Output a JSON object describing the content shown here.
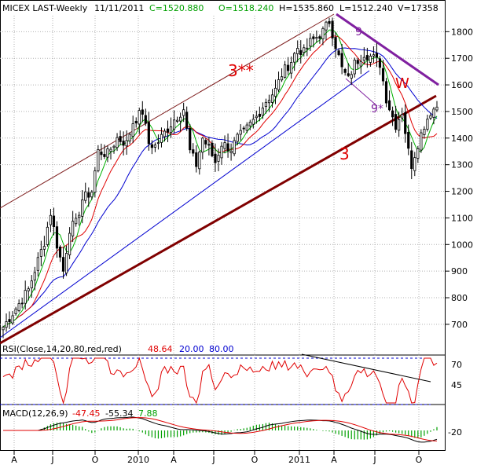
{
  "header": {
    "symbol": "MICEX LAST-Weekly",
    "date": "11/11/2011",
    "close": "C=1520.880",
    "open": "O=1518.240",
    "high": "H=1535.860",
    "low": "L=1512.240",
    "volume": "V=17358"
  },
  "rsi_header": {
    "label": "RSI(Close,14,20,80,red,red)",
    "value": "48.64",
    "low": "20.00",
    "high": "80.00"
  },
  "macd_header": {
    "label": "MACD(12,26,9)",
    "macd": "-47.45",
    "signal": "-55.34",
    "hist": "7.88"
  },
  "annotations": {
    "channel_top": "3**",
    "channel_bottom": "3",
    "wave9": "9",
    "wave9star": "9*",
    "w": "W"
  },
  "colors": {
    "up": "#000000",
    "ma_green": "#00b000",
    "ma_red": "#e00000",
    "ma_blue": "#0000d0",
    "trend_red": "#800000",
    "trend_purple": "#8020a0",
    "channel": "#802020",
    "rsi": "#e00000",
    "grid": "#b0b0b0"
  },
  "chart_data": [
    {
      "type": "candlestick",
      "title": "MICEX LAST-Weekly",
      "x_tick_labels": [
        "A",
        "J",
        "O",
        "2010",
        "A",
        "J",
        "O",
        "2011",
        "A",
        "J",
        "O"
      ],
      "y_tick_labels": [
        "700",
        "800",
        "900",
        "1000",
        "1100",
        "1200",
        "1300",
        "1400",
        "1500",
        "1600",
        "1700",
        "1800"
      ],
      "ylim": [
        620,
        1860
      ],
      "x_range": [
        "2009-03",
        "2011-11"
      ],
      "close_path": [
        [
          0,
          690
        ],
        [
          4,
          760
        ],
        [
          8,
          830
        ],
        [
          11,
          940
        ],
        [
          13,
          1010
        ],
        [
          15,
          1120
        ],
        [
          17,
          1000
        ],
        [
          19,
          900
        ],
        [
          21,
          1060
        ],
        [
          23,
          1080
        ],
        [
          25,
          1170
        ],
        [
          28,
          1200
        ],
        [
          30,
          1350
        ],
        [
          33,
          1340
        ],
        [
          36,
          1400
        ],
        [
          39,
          1380
        ],
        [
          41,
          1460
        ],
        [
          44,
          1500
        ],
        [
          46,
          1380
        ],
        [
          48,
          1370
        ],
        [
          51,
          1420
        ],
        [
          54,
          1470
        ],
        [
          57,
          1510
        ],
        [
          59,
          1350
        ],
        [
          61,
          1300
        ],
        [
          63,
          1400
        ],
        [
          65,
          1360
        ],
        [
          67,
          1310
        ],
        [
          69,
          1380
        ],
        [
          72,
          1360
        ],
        [
          74,
          1400
        ],
        [
          76,
          1420
        ],
        [
          78,
          1450
        ],
        [
          80,
          1480
        ],
        [
          83,
          1540
        ],
        [
          86,
          1580
        ],
        [
          88,
          1640
        ],
        [
          91,
          1690
        ],
        [
          93,
          1740
        ],
        [
          95,
          1720
        ],
        [
          97,
          1760
        ],
        [
          99,
          1780
        ],
        [
          101,
          1800
        ],
        [
          103,
          1840
        ],
        [
          105,
          1750
        ],
        [
          107,
          1660
        ],
        [
          109,
          1620
        ],
        [
          111,
          1680
        ],
        [
          114,
          1720
        ],
        [
          117,
          1700
        ],
        [
          119,
          1680
        ],
        [
          121,
          1550
        ],
        [
          123,
          1480
        ],
        [
          124,
          1450
        ],
        [
          126,
          1500
        ],
        [
          128,
          1350
        ],
        [
          129,
          1300
        ],
        [
          131,
          1380
        ],
        [
          133,
          1450
        ],
        [
          135,
          1500
        ],
        [
          137,
          1520
        ]
      ],
      "moving_averages": [
        "green",
        "red",
        "blue"
      ],
      "annotations": [
        "3**",
        "3",
        "9",
        "9*",
        "W"
      ]
    },
    {
      "type": "line",
      "title": "RSI(Close,14,20,80,red,red)",
      "y_tick_labels": [
        "70",
        "45"
      ],
      "levels": [
        20,
        80
      ],
      "last": 48.64
    },
    {
      "type": "line",
      "title": "MACD(12,26,9)",
      "y_tick_labels": [
        "-20"
      ],
      "macd": -47.45,
      "signal": -55.34,
      "histogram": 7.88
    }
  ]
}
